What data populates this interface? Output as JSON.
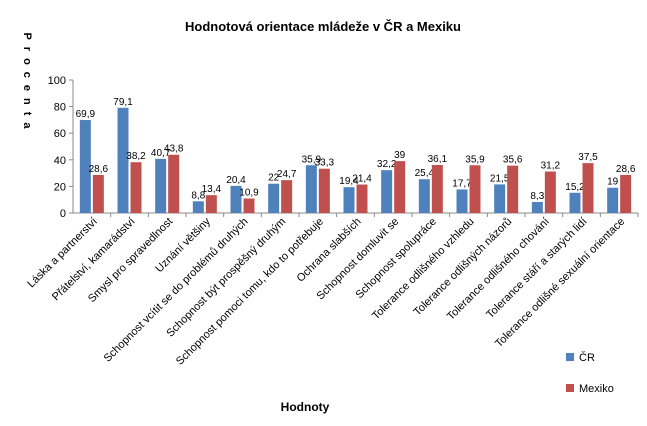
{
  "chart_data": {
    "type": "bar",
    "title": "Hodnotová orientace mládeže v ČR a Mexiku",
    "xlabel": "Hodnoty",
    "ylabel": "Procenta",
    "ylim": [
      0,
      100
    ],
    "yticks": [
      0,
      20,
      40,
      60,
      80,
      100
    ],
    "grid": false,
    "legend_position": "right",
    "categories": [
      "Láska a partnerství",
      "Přátelství, kamarádství",
      "Smysl pro spravedlnost",
      "Uznání většiny",
      "Schopnost vcítit se do problémů druhých",
      "Schopnost být prospěšný druhým",
      "Schopnost pomoci tomu, kdo to potřebuje",
      "Ochrana slabších",
      "Schopnost domluvit se",
      "Schopnost spolupráce",
      "Tolerance odlišného vzhledu",
      "Tolerance odlišných názorů",
      "Tolerance odlišného chování",
      "Tolerance stáří a starých lidí",
      "Tolerance odlišné sexuální orientace"
    ],
    "series": [
      {
        "name": "ČR",
        "color": "#4F81BD",
        "values": [
          69.9,
          79.1,
          40.7,
          8.8,
          20.4,
          22,
          35.9,
          19.4,
          32.2,
          25.4,
          17.7,
          21.5,
          8.3,
          15.2,
          19
        ],
        "labels": [
          "69,9",
          "79,1",
          "40,7",
          "8,8",
          "20,4",
          "22",
          "35,9",
          "19,4",
          "32,2",
          "25,4",
          "17,7",
          "21,5",
          "8,3",
          "15,2",
          "19"
        ]
      },
      {
        "name": "Mexiko",
        "color": "#C0504D",
        "values": [
          28.6,
          38.2,
          43.8,
          13.4,
          10.9,
          24.7,
          33.3,
          21.4,
          39,
          36.1,
          35.9,
          35.6,
          31.2,
          37.5,
          28.6
        ],
        "labels": [
          "28,6",
          "38,2",
          "43,8",
          "13,4",
          "10,9",
          "24,7",
          "33,3",
          "21,4",
          "39",
          "36,1",
          "35,9",
          "35,6",
          "31,2",
          "37,5",
          "28,6"
        ]
      }
    ]
  }
}
